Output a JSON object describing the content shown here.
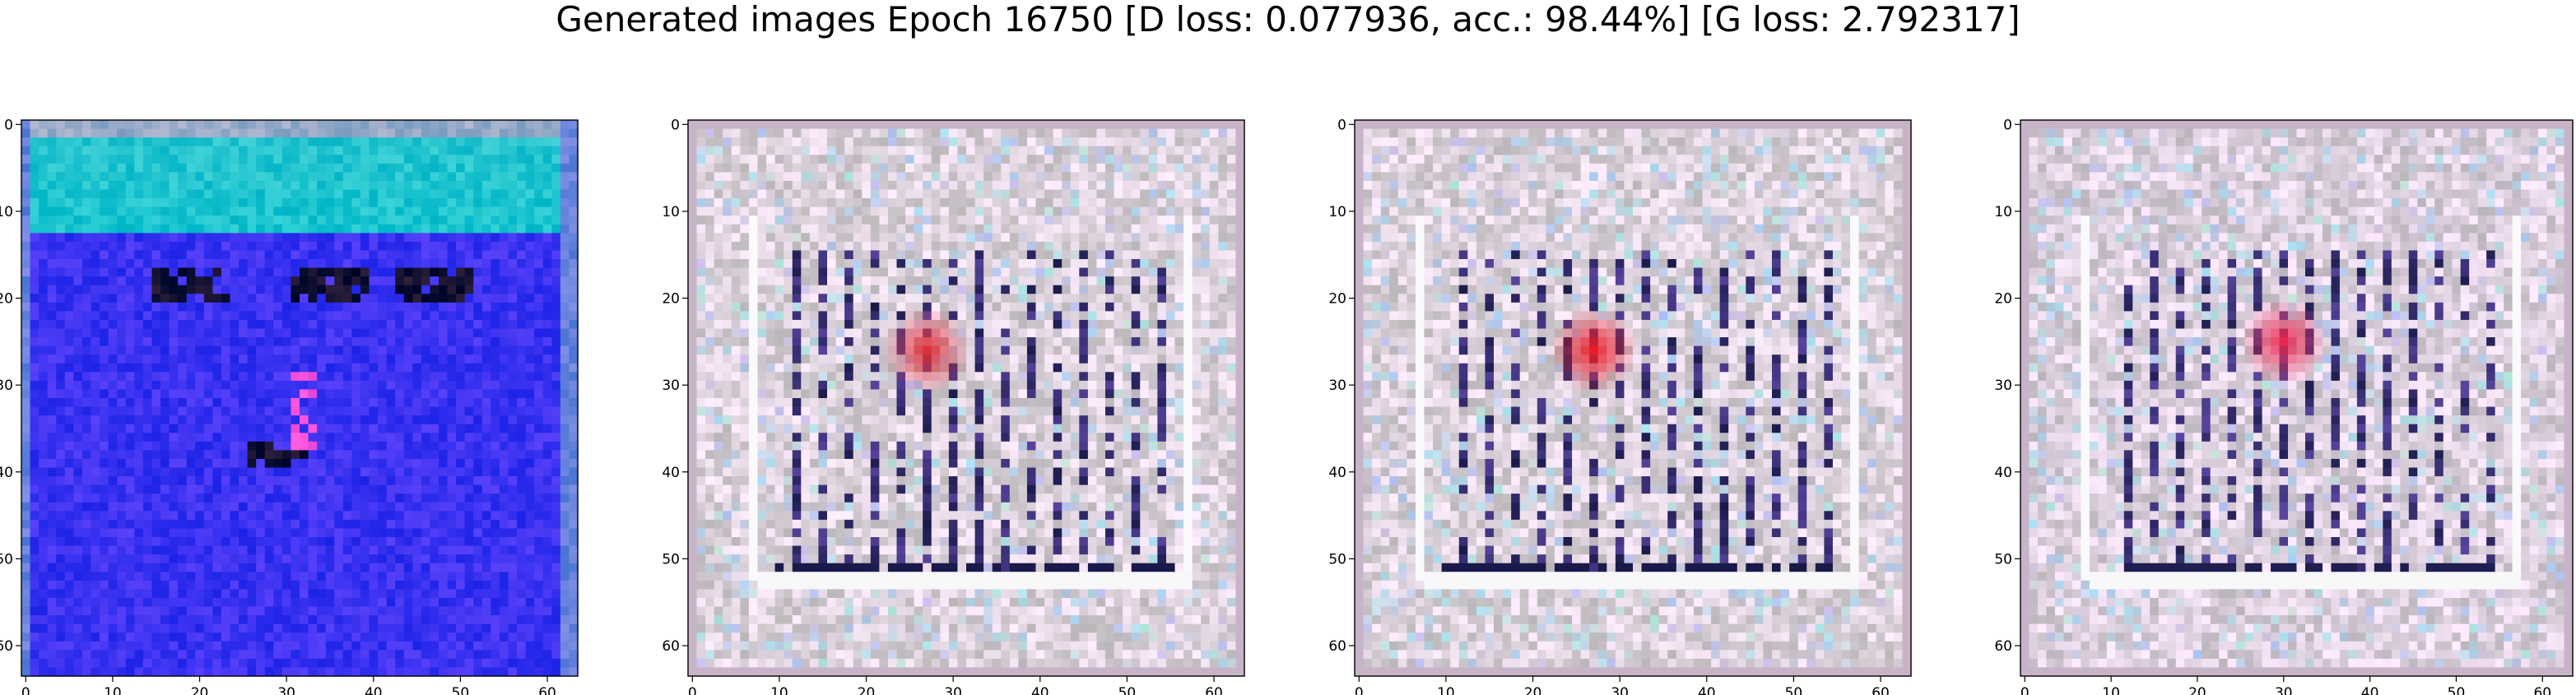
{
  "figure": {
    "title": "Generated images Epoch 16750 [D loss: 0.077936, acc.: 98.44%] [G loss: 2.792317]"
  },
  "colors": {
    "axis": "#000000",
    "background": "#ffffff"
  },
  "chart_data": [
    {
      "type": "heatmap",
      "title": "",
      "xlim": [
        -0.5,
        63.5
      ],
      "ylim": [
        63.5,
        -0.5
      ],
      "x_ticks": [
        0,
        10,
        20,
        30,
        40,
        50,
        60
      ],
      "y_ticks": [
        0,
        10,
        20,
        30,
        40,
        50,
        60
      ],
      "palette": {
        "base": "#3a32f0",
        "top_band": "#28c4cf",
        "dark_spots": "#101030",
        "highlight": "#ff55dd"
      }
    },
    {
      "type": "heatmap",
      "title": "",
      "xlim": [
        -0.5,
        63.5
      ],
      "ylim": [
        63.5,
        -0.5
      ],
      "x_ticks": [
        0,
        10,
        20,
        30,
        40,
        50,
        60
      ],
      "y_ticks": [
        0,
        10,
        20,
        30,
        40,
        50,
        60
      ],
      "palette": {
        "base": "#ddd2dc",
        "dark_stripes": "#1a1a4a",
        "red_blob": "#e0303a"
      }
    },
    {
      "type": "heatmap",
      "title": "",
      "xlim": [
        -0.5,
        63.5
      ],
      "ylim": [
        63.5,
        -0.5
      ],
      "x_ticks": [
        0,
        10,
        20,
        30,
        40,
        50,
        60
      ],
      "y_ticks": [
        0,
        10,
        20,
        30,
        40,
        50,
        60
      ],
      "palette": {
        "base": "#ddd2dc",
        "dark_stripes": "#1a1a4a",
        "red_blob": "#e81c28"
      }
    },
    {
      "type": "heatmap",
      "title": "",
      "xlim": [
        -0.5,
        63.5
      ],
      "ylim": [
        63.5,
        -0.5
      ],
      "x_ticks": [
        0,
        10,
        20,
        30,
        40,
        50,
        60
      ],
      "y_ticks": [
        0,
        10,
        20,
        30,
        40,
        50,
        60
      ],
      "palette": {
        "base": "#ddd0de",
        "dark_stripes": "#1e1e50",
        "red_blob": "#e82850"
      }
    }
  ]
}
